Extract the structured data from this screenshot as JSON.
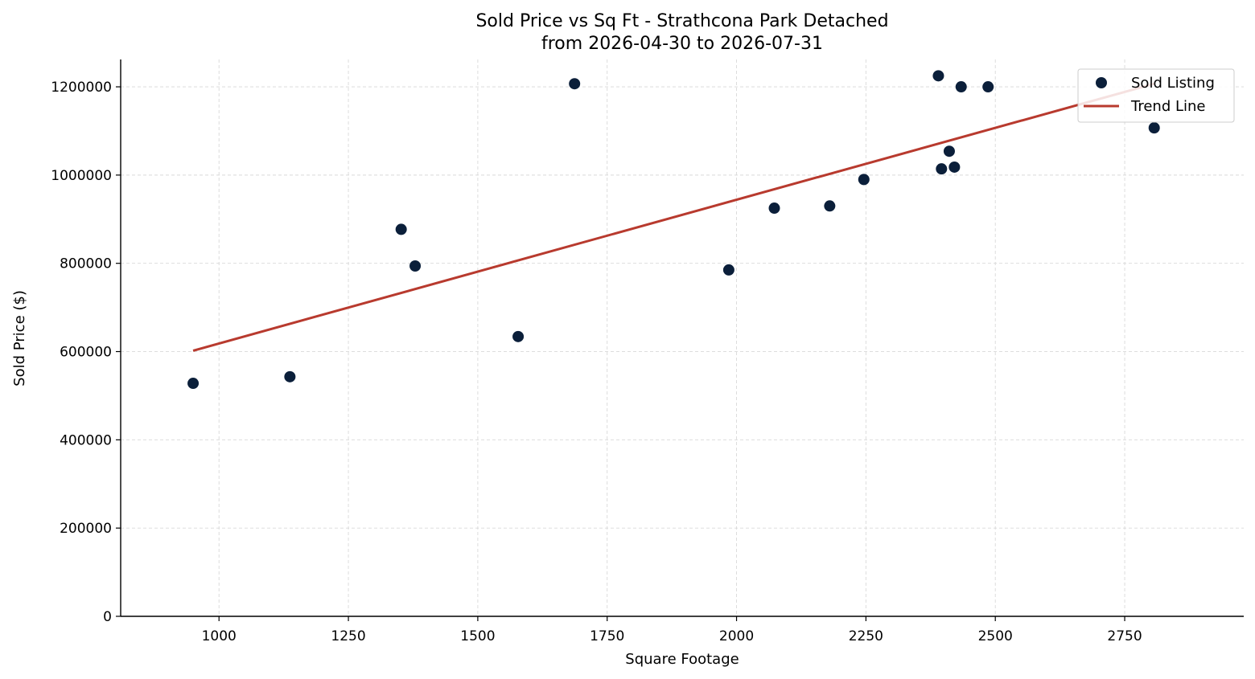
{
  "chart_data": {
    "type": "scatter",
    "title": "Sold Price vs Sq Ft - Strathcona Park Detached",
    "subtitle": "from 2026-04-30 to 2026-07-31",
    "xlabel": "Square Footage",
    "ylabel": "Sold Price ($)",
    "xlim": [
      810,
      2980
    ],
    "ylim": [
      0,
      1262000
    ],
    "xticks": [
      1000,
      1250,
      1500,
      1750,
      2000,
      2250,
      2500,
      2750
    ],
    "yticks": [
      0,
      200000,
      400000,
      600000,
      800000,
      1000000,
      1200000
    ],
    "grid": true,
    "legend_position": "top-right",
    "series": [
      {
        "name": "Sold Listing",
        "kind": "scatter",
        "color": "#0b1f3a",
        "points": [
          {
            "x": 950,
            "y": 528000
          },
          {
            "x": 1137,
            "y": 543000
          },
          {
            "x": 1352,
            "y": 877000
          },
          {
            "x": 1379,
            "y": 794000
          },
          {
            "x": 1578,
            "y": 634000
          },
          {
            "x": 1687,
            "y": 1207000
          },
          {
            "x": 1985,
            "y": 785000
          },
          {
            "x": 2073,
            "y": 925000
          },
          {
            "x": 2180,
            "y": 930000
          },
          {
            "x": 2246,
            "y": 990000
          },
          {
            "x": 2390,
            "y": 1225000
          },
          {
            "x": 2396,
            "y": 1014000
          },
          {
            "x": 2411,
            "y": 1054000
          },
          {
            "x": 2421,
            "y": 1018000
          },
          {
            "x": 2434,
            "y": 1200000
          },
          {
            "x": 2486,
            "y": 1200000
          },
          {
            "x": 2807,
            "y": 1107000
          }
        ]
      },
      {
        "name": "Trend Line",
        "kind": "line",
        "color": "#b83a2e",
        "points": [
          {
            "x": 950,
            "y": 602000
          },
          {
            "x": 2807,
            "y": 1207000
          }
        ]
      }
    ]
  }
}
